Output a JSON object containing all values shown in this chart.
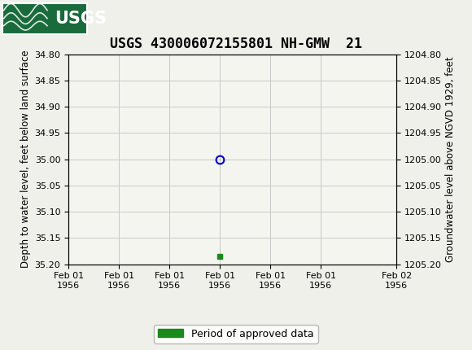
{
  "title": "USGS 430006072155801 NH-GMW  21",
  "ylabel_left": "Depth to water level, feet below land surface",
  "ylabel_right": "Groundwater level above NGVD 1929, feet",
  "ylim_left": [
    34.8,
    35.2
  ],
  "ylim_right": [
    1204.8,
    1205.2
  ],
  "yticks_left": [
    34.8,
    34.85,
    34.9,
    34.95,
    35.0,
    35.05,
    35.1,
    35.15,
    35.2
  ],
  "yticks_right": [
    1204.8,
    1204.85,
    1204.9,
    1204.95,
    1205.0,
    1205.05,
    1205.1,
    1205.15,
    1205.2
  ],
  "data_point_y": 35.0,
  "green_marker_y": 35.185,
  "x_data_point": 0.0,
  "x_green_marker": 0.0,
  "xlim": [
    -3.0,
    3.5
  ],
  "xtick_positions": [
    -3.0,
    -2.0,
    -1.0,
    0.0,
    1.0,
    2.0,
    3.5
  ],
  "xtick_labels": [
    "Feb 01\n1956",
    "Feb 01\n1956",
    "Feb 01\n1956",
    "Feb 01\n1956",
    "Feb 01\n1956",
    "Feb 01\n1956",
    "Feb 02\n1956"
  ],
  "grid_color": "#c8c8c8",
  "plot_bg_color": "#f5f5f0",
  "fig_bg_color": "#f0f0eb",
  "header_color": "#1a6b3c",
  "data_point_color": "#0000cc",
  "green_marker_color": "#1a8a1a",
  "legend_label": "Period of approved data",
  "title_fontsize": 12,
  "axis_label_fontsize": 8.5,
  "tick_fontsize": 8,
  "legend_fontsize": 9
}
